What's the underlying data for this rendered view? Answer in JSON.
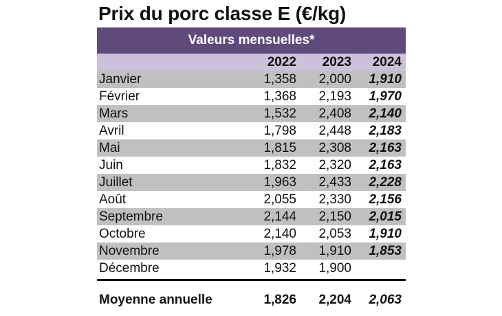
{
  "title": "Prix du porc classe E (€/kg)",
  "table": {
    "banner": "Valeurs mensuelles*",
    "years": [
      "2022",
      "2023",
      "2024"
    ],
    "rows": [
      {
        "month": "Janvier",
        "v2022": "1,358",
        "v2023": "2,000",
        "v2024": "1,910"
      },
      {
        "month": "Février",
        "v2022": "1,368",
        "v2023": "2,193",
        "v2024": "1,970"
      },
      {
        "month": "Mars",
        "v2022": "1,532",
        "v2023": "2,408",
        "v2024": "2,140"
      },
      {
        "month": "Avril",
        "v2022": "1,798",
        "v2023": "2,448",
        "v2024": "2,183"
      },
      {
        "month": "Mai",
        "v2022": "1,815",
        "v2023": "2,308",
        "v2024": "2,163"
      },
      {
        "month": "Juin",
        "v2022": "1,832",
        "v2023": "2,320",
        "v2024": "2,163"
      },
      {
        "month": "Juillet",
        "v2022": "1,963",
        "v2023": "2,433",
        "v2024": "2,228"
      },
      {
        "month": "Août",
        "v2022": "2,055",
        "v2023": "2,330",
        "v2024": "2,156"
      },
      {
        "month": "Septembre",
        "v2022": "2,144",
        "v2023": "2,150",
        "v2024": "2,015"
      },
      {
        "month": "Octobre",
        "v2022": "2,140",
        "v2023": "2,053",
        "v2024": "1,910"
      },
      {
        "month": "Novembre",
        "v2022": "1,978",
        "v2023": "1,910",
        "v2024": "1,853"
      },
      {
        "month": "Décembre",
        "v2022": "1,932",
        "v2023": "1,900",
        "v2024": ""
      }
    ],
    "average": {
      "label": "Moyenne annuelle",
      "v2022": "1,826",
      "v2023": "2,204",
      "v2024": "2,063"
    }
  },
  "colors": {
    "banner": "#604a7b",
    "years_row": "#ccc0da",
    "shaded_row": "#c0c0c0"
  }
}
